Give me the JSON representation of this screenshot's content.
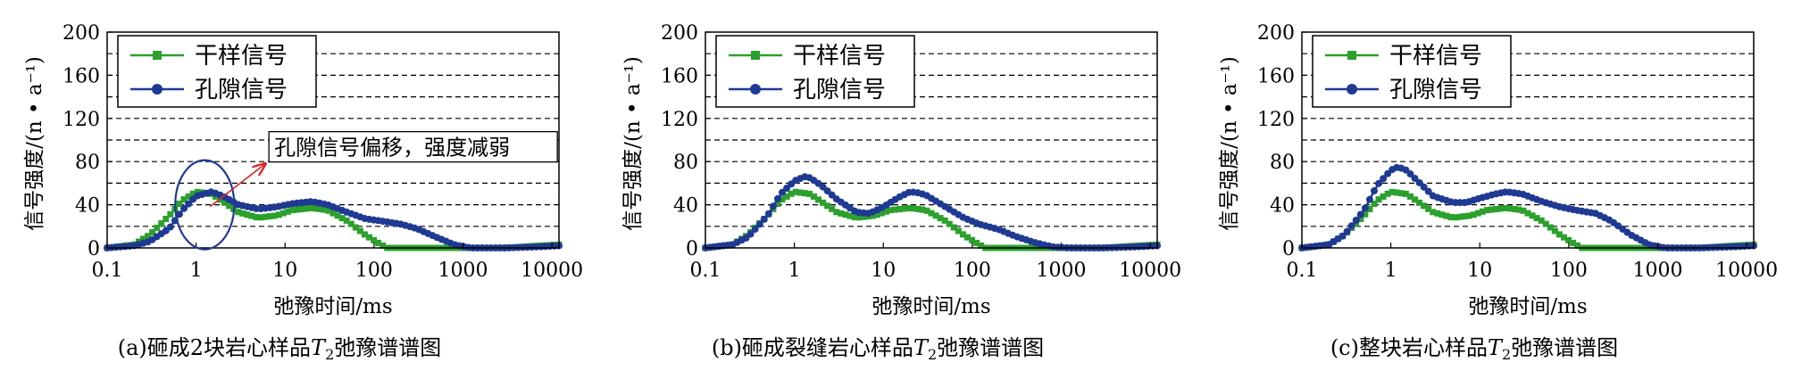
{
  "colors": {
    "dry": "#2ca02c",
    "pore": "#1f3a93",
    "annotation": "#d62728",
    "grid": "#000000"
  },
  "chart_data": [
    {
      "type": "line",
      "caption": "(a)砸成2块岩心样品T2弛豫谱谱图",
      "caption_parts": {
        "pre": "(a)砸成2块岩心样品",
        "sym": "T",
        "sub": "2",
        "post": "弛豫谱谱图"
      },
      "xlabel": "弛豫时间/ms",
      "ylabel": "信号强度/(n • a⁻¹)",
      "xscale": "log",
      "xlim": [
        0.1,
        12000
      ],
      "ylim": [
        0,
        200
      ],
      "xticks": [
        0.1,
        1,
        10,
        100,
        1000,
        10000
      ],
      "xtick_labels": [
        "0.1",
        "1",
        "10",
        "100",
        "1000",
        "10000"
      ],
      "yticks": [
        0,
        40,
        80,
        120,
        160,
        200
      ],
      "ytick_labels": [
        "0",
        "40",
        "80",
        "120",
        "160",
        "200"
      ],
      "legend": {
        "placement": "top-left",
        "entries": [
          "干样信号",
          "孔隙信号"
        ]
      },
      "annotation": {
        "text": "孔隙信号偏移，强度减弱",
        "circle_center": [
          1.25,
          40
        ],
        "arrow_to": [
          6,
          78
        ]
      },
      "series": [
        {
          "name": "干样信号",
          "marker": "square",
          "color": "dry",
          "x": [
            0.1,
            0.2,
            0.3,
            0.5,
            0.7,
            1,
            1.5,
            2,
            3,
            5,
            8,
            12,
            20,
            30,
            50,
            80,
            120,
            140,
            200,
            500,
            1000,
            3000,
            7000,
            12000
          ],
          "y": [
            0,
            3,
            12,
            30,
            44,
            52,
            50,
            43,
            33,
            28,
            30,
            35,
            37,
            35,
            25,
            12,
            3,
            0,
            0,
            0,
            0,
            0,
            2,
            3
          ]
        },
        {
          "name": "孔隙信号",
          "marker": "circle",
          "color": "pore",
          "x": [
            0.1,
            0.2,
            0.3,
            0.5,
            0.7,
            1,
            1.5,
            2,
            3,
            5,
            8,
            12,
            20,
            30,
            50,
            80,
            120,
            200,
            300,
            500,
            800,
            1200,
            3000,
            7000,
            12000
          ],
          "y": [
            0,
            2,
            6,
            18,
            35,
            48,
            52,
            48,
            40,
            36,
            38,
            41,
            43,
            40,
            33,
            27,
            25,
            22,
            18,
            10,
            3,
            0,
            0,
            1,
            2
          ]
        }
      ]
    },
    {
      "type": "line",
      "caption": "(b)砸成裂缝岩心样品T2弛豫谱谱图",
      "caption_parts": {
        "pre": "(b)砸成裂缝岩心样品",
        "sym": "T",
        "sub": "2",
        "post": "弛豫谱谱图"
      },
      "xlabel": "弛豫时间/ms",
      "ylabel": "信号强度/(n • a⁻¹)",
      "xscale": "log",
      "xlim": [
        0.1,
        12000
      ],
      "ylim": [
        0,
        200
      ],
      "xticks": [
        0.1,
        1,
        10,
        100,
        1000,
        10000
      ],
      "xtick_labels": [
        "0.1",
        "1",
        "10",
        "100",
        "1000",
        "10000"
      ],
      "yticks": [
        0,
        40,
        80,
        120,
        160,
        200
      ],
      "ytick_labels": [
        "0",
        "40",
        "80",
        "120",
        "160",
        "200"
      ],
      "legend": {
        "placement": "top-left",
        "entries": [
          "干样信号",
          "孔隙信号"
        ]
      },
      "series": [
        {
          "name": "干样信号",
          "marker": "square",
          "color": "dry",
          "x": [
            0.1,
            0.2,
            0.3,
            0.5,
            0.7,
            1,
            1.5,
            2,
            3,
            5,
            8,
            12,
            20,
            30,
            50,
            80,
            120,
            140,
            200,
            500,
            1000,
            3000,
            7000,
            12000
          ],
          "y": [
            0,
            3,
            12,
            30,
            44,
            52,
            50,
            43,
            33,
            28,
            30,
            35,
            37,
            35,
            25,
            12,
            3,
            0,
            0,
            0,
            0,
            0,
            2,
            3
          ]
        },
        {
          "name": "孔隙信号",
          "marker": "circle",
          "color": "pore",
          "x": [
            0.1,
            0.2,
            0.3,
            0.5,
            0.7,
            1,
            1.3,
            1.5,
            2,
            3,
            5,
            7,
            10,
            15,
            20,
            25,
            30,
            50,
            80,
            120,
            200,
            300,
            500,
            800,
            1200,
            3000,
            7000,
            12000
          ],
          "y": [
            0,
            3,
            10,
            30,
            50,
            62,
            66,
            65,
            58,
            45,
            33,
            32,
            38,
            47,
            52,
            51,
            49,
            38,
            28,
            22,
            17,
            11,
            5,
            1,
            0,
            0,
            1,
            2
          ]
        }
      ]
    },
    {
      "type": "line",
      "caption": "(c)整块岩心样品T2弛豫谱谱图",
      "caption_parts": {
        "pre": "(c)整块岩心样品",
        "sym": "T",
        "sub": "2",
        "post": "弛豫谱谱图"
      },
      "xlabel": "弛豫时间/ms",
      "ylabel": "信号强度/(n • a⁻¹)",
      "xscale": "log",
      "xlim": [
        0.1,
        12000
      ],
      "ylim": [
        0,
        200
      ],
      "xticks": [
        0.1,
        1,
        10,
        100,
        1000,
        10000
      ],
      "xtick_labels": [
        "0.1",
        "1",
        "10",
        "100",
        "1000",
        "10000"
      ],
      "yticks": [
        0,
        40,
        80,
        120,
        160,
        200
      ],
      "ytick_labels": [
        "0",
        "40",
        "80",
        "120",
        "160",
        "200"
      ],
      "legend": {
        "placement": "top-left",
        "entries": [
          "干样信号",
          "孔隙信号"
        ]
      },
      "series": [
        {
          "name": "干样信号",
          "marker": "square",
          "color": "dry",
          "x": [
            0.1,
            0.2,
            0.3,
            0.5,
            0.7,
            1,
            1.5,
            2,
            3,
            5,
            8,
            12,
            20,
            30,
            50,
            80,
            120,
            140,
            200,
            500,
            1000,
            3000,
            7000,
            12000
          ],
          "y": [
            0,
            3,
            12,
            30,
            44,
            52,
            50,
            43,
            33,
            28,
            30,
            35,
            37,
            35,
            25,
            12,
            3,
            0,
            0,
            0,
            0,
            0,
            2,
            3
          ]
        },
        {
          "name": "孔隙信号",
          "marker": "circle",
          "color": "pore",
          "x": [
            0.1,
            0.2,
            0.3,
            0.5,
            0.7,
            1,
            1.2,
            1.5,
            2,
            3,
            5,
            7,
            10,
            15,
            20,
            30,
            50,
            80,
            120,
            200,
            300,
            500,
            800,
            1200,
            3000,
            7000,
            12000
          ],
          "y": [
            0,
            3,
            12,
            35,
            58,
            72,
            75,
            72,
            62,
            48,
            42,
            42,
            46,
            50,
            52,
            50,
            43,
            38,
            35,
            32,
            25,
            12,
            3,
            0,
            0,
            1,
            2
          ]
        }
      ]
    }
  ]
}
